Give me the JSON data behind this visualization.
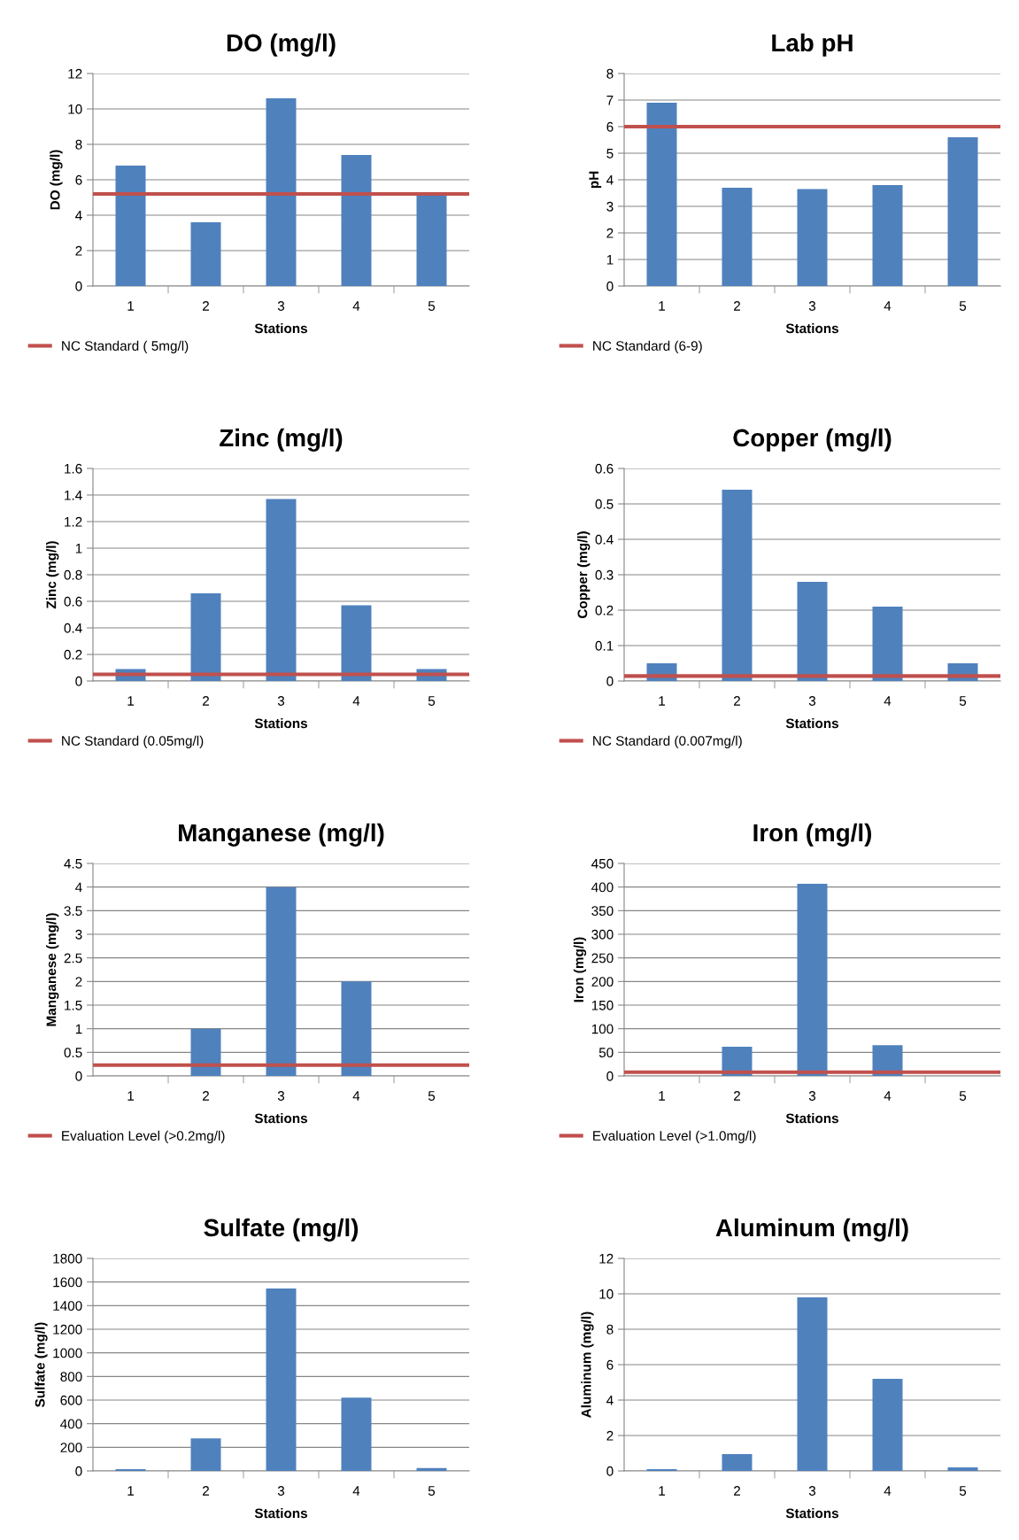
{
  "chart_data": [
    {
      "type": "bar",
      "title": "DO (mg/l)",
      "xlabel": "Stations",
      "ylabel": "DO (mg/l)",
      "categories": [
        "1",
        "2",
        "3",
        "4",
        "5"
      ],
      "values": [
        6.8,
        3.6,
        10.6,
        7.4,
        5.1
      ],
      "color": "#4f81bd",
      "ylim": [
        0,
        12
      ],
      "yticks": [
        0,
        2,
        4,
        6,
        8,
        10,
        12
      ],
      "grid": "y",
      "legend": "bottom left",
      "ref_lines": [
        {
          "axis": "y",
          "value": 5.2,
          "label": "NC Standard ( 5mg/l)",
          "color": "#c0504d"
        }
      ]
    },
    {
      "type": "bar",
      "title": "Lab pH",
      "xlabel": "Stations",
      "ylabel": "pH",
      "categories": [
        "1",
        "2",
        "3",
        "4",
        "5"
      ],
      "values": [
        6.9,
        3.7,
        3.65,
        3.8,
        5.6
      ],
      "color": "#4f81bd",
      "ylim": [
        0,
        8
      ],
      "yticks": [
        0,
        1,
        2,
        3,
        4,
        5,
        6,
        7,
        8
      ],
      "grid": "y",
      "legend": "bottom left",
      "ref_lines": [
        {
          "axis": "y",
          "value": 6.0,
          "label": "NC Standard (6-9)",
          "color": "#c0504d"
        }
      ]
    },
    {
      "type": "bar",
      "title": "Zinc (mg/l)",
      "xlabel": "Stations",
      "ylabel": "Zinc (mg/l)",
      "categories": [
        "1",
        "2",
        "3",
        "4",
        "5"
      ],
      "values": [
        0.09,
        0.66,
        1.37,
        0.57,
        0.09
      ],
      "color": "#4f81bd",
      "ylim": [
        0,
        1.6
      ],
      "yticks": [
        0,
        0.2,
        0.4,
        0.6,
        0.8,
        1,
        1.2,
        1.4,
        1.6
      ],
      "grid": "y",
      "legend": "bottom left",
      "ref_lines": [
        {
          "axis": "y",
          "value": 0.05,
          "label": "NC Standard (0.05mg/l)",
          "color": "#c0504d"
        }
      ]
    },
    {
      "type": "bar",
      "title": "Copper (mg/l)",
      "xlabel": "Stations",
      "ylabel": "Copper (mg/l)",
      "categories": [
        "1",
        "2",
        "3",
        "4",
        "5"
      ],
      "values": [
        0.05,
        0.54,
        0.28,
        0.21,
        0.05
      ],
      "color": "#4f81bd",
      "ylim": [
        0,
        0.6
      ],
      "yticks": [
        0,
        0.1,
        0.2,
        0.3,
        0.4,
        0.5,
        0.6
      ],
      "grid": "y",
      "legend": "bottom left",
      "ref_lines": [
        {
          "axis": "y",
          "value": 0.014,
          "label": "NC Standard (0.007mg/l)",
          "color": "#c0504d"
        }
      ]
    },
    {
      "type": "bar",
      "title": "Manganese (mg/l)",
      "xlabel": "Stations",
      "ylabel": "Manganese (mg/l)",
      "categories": [
        "1",
        "2",
        "3",
        "4",
        "5"
      ],
      "values": [
        0,
        1.0,
        4.0,
        2.0,
        0
      ],
      "color": "#4f81bd",
      "ylim": [
        0,
        4.5
      ],
      "yticks": [
        0,
        0.5,
        1,
        1.5,
        2,
        2.5,
        3,
        3.5,
        4,
        4.5
      ],
      "grid": "y",
      "legend": "bottom left",
      "ref_lines": [
        {
          "axis": "y",
          "value": 0.23,
          "label": "Evaluation Level (>0.2mg/l)",
          "color": "#c0504d"
        }
      ]
    },
    {
      "type": "bar",
      "title": "Iron (mg/l)",
      "xlabel": "Stations",
      "ylabel": "Iron (mg/l)",
      "categories": [
        "1",
        "2",
        "3",
        "4",
        "5"
      ],
      "values": [
        0,
        62,
        407,
        65,
        0
      ],
      "color": "#4f81bd",
      "ylim": [
        0,
        450
      ],
      "yticks": [
        0,
        50,
        100,
        150,
        200,
        250,
        300,
        350,
        400,
        450
      ],
      "grid": "y",
      "legend": "bottom left",
      "ref_lines": [
        {
          "axis": "y",
          "value": 8,
          "label": "Evaluation Level (>1.0mg/l)",
          "color": "#c0504d"
        }
      ]
    },
    {
      "type": "bar",
      "title": "Sulfate (mg/l)",
      "xlabel": "Stations",
      "ylabel": "Sulfate (mg/l)",
      "categories": [
        "1",
        "2",
        "3",
        "4",
        "5"
      ],
      "values": [
        15,
        275,
        1545,
        620,
        25
      ],
      "color": "#4f81bd",
      "ylim": [
        0,
        1800
      ],
      "yticks": [
        0,
        200,
        400,
        600,
        800,
        1000,
        1200,
        1400,
        1600,
        1800
      ],
      "grid": "y"
    },
    {
      "type": "bar",
      "title": "Aluminum (mg/l)",
      "xlabel": "Stations",
      "ylabel": "Aluminum (mg/l)",
      "categories": [
        "1",
        "2",
        "3",
        "4",
        "5"
      ],
      "values": [
        0.1,
        0.95,
        9.8,
        5.2,
        0.2
      ],
      "color": "#4f81bd",
      "ylim": [
        0,
        12
      ],
      "yticks": [
        0,
        2,
        4,
        6,
        8,
        10,
        12
      ],
      "grid": "y"
    }
  ]
}
